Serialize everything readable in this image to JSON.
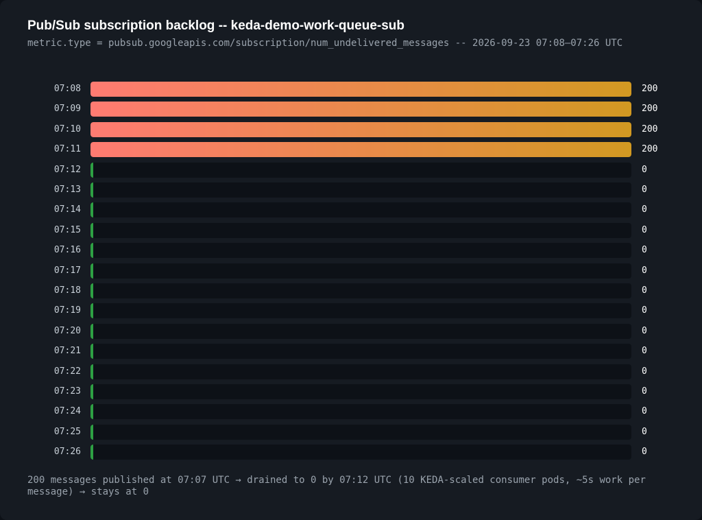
{
  "colors": {
    "background": "#161b22",
    "track": "#0d1117",
    "bar_gradient_start": "#ff7b72",
    "bar_gradient_end": "#d29922",
    "zero_marker": "#2ea043",
    "title": "#ffffff",
    "muted_text": "#9aa3ad"
  },
  "chart_data": {
    "type": "bar",
    "orientation": "horizontal",
    "title": "Pub/Sub subscription backlog -- keda-demo-work-queue-sub",
    "subtitle": "metric.type = pubsub.googleapis.com/subscription/num_undelivered_messages -- 2026-09-23 07:08–07:26 UTC",
    "categories": [
      "07:08",
      "07:09",
      "07:10",
      "07:11",
      "07:12",
      "07:13",
      "07:14",
      "07:15",
      "07:16",
      "07:17",
      "07:18",
      "07:19",
      "07:20",
      "07:21",
      "07:22",
      "07:23",
      "07:24",
      "07:25",
      "07:26"
    ],
    "values": [
      200,
      200,
      200,
      200,
      0,
      0,
      0,
      0,
      0,
      0,
      0,
      0,
      0,
      0,
      0,
      0,
      0,
      0,
      0
    ],
    "value_labels": [
      "200",
      "200",
      "200",
      "200",
      "0",
      "0",
      "0",
      "0",
      "0",
      "0",
      "0",
      "0",
      "0",
      "0",
      "0",
      "0",
      "0",
      "0",
      "0"
    ],
    "xlim": [
      0,
      200
    ],
    "grid": false,
    "legend": "none",
    "caption": "200 messages published at 07:07 UTC → drained to 0 by 07:12 UTC (10 KEDA-scaled consumer pods, ~5s work per message) → stays at 0"
  }
}
